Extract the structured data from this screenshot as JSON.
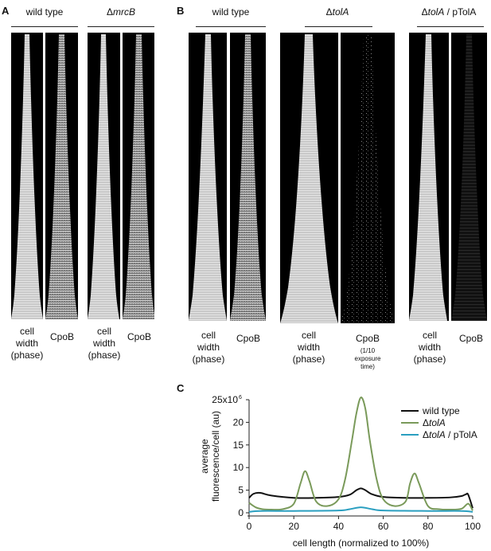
{
  "panel_labels": {
    "a": "A",
    "b": "B",
    "c": "C"
  },
  "groups": {
    "a1": "wild type",
    "a2_prefix": "Δ",
    "a2_gene": "mrcB",
    "b1": "wild type",
    "b2_prefix": "Δ",
    "b2_gene": "tolA",
    "b3_prefix": "Δ",
    "b3_gene": "tolA",
    "b3_suffix": " / pTolA"
  },
  "captions": {
    "cell_width": [
      "cell",
      "width",
      "(phase)"
    ],
    "cpob": "CpoB",
    "exposure": [
      "(1/10",
      "exposure",
      "time)"
    ]
  },
  "colors": {
    "wild_type": "#111111",
    "tolA": "#7a9a5a",
    "tolA_ptolA": "#2a9fc0"
  },
  "chart_data": {
    "type": "line",
    "ylabel_line1": "average",
    "ylabel_line2": "fluorescence/cell (au)",
    "xlabel": "cell length (normalized to 100%)",
    "xlim": [
      0,
      100
    ],
    "ylim": [
      0,
      25000000
    ],
    "xticks": [
      "0",
      "20",
      "40",
      "60",
      "80",
      "100"
    ],
    "yticks": [
      "0",
      "5",
      "10",
      "15",
      "20"
    ],
    "ytop_tick_base": "25x10",
    "ytop_tick_exp": "6",
    "legend_placement": "top-right",
    "series": [
      {
        "name": "wild type",
        "name_parts": [
          "wild type"
        ],
        "color": "#111111",
        "x": [
          0,
          2,
          5,
          10,
          20,
          30,
          40,
          45,
          48,
          50,
          52,
          55,
          60,
          70,
          80,
          90,
          95,
          97,
          98,
          100
        ],
        "y": [
          3300000,
          4200000,
          4400000,
          3800000,
          3300000,
          3300000,
          3500000,
          4000000,
          5000000,
          5400000,
          5000000,
          4100000,
          3500000,
          3300000,
          3300000,
          3400000,
          3700000,
          4100000,
          4000000,
          1000000
        ]
      },
      {
        "name": "ΔtolA",
        "name_parts": [
          "Δ",
          "tolA"
        ],
        "color": "#7a9a5a",
        "x": [
          0,
          3,
          6,
          10,
          15,
          20,
          23,
          25,
          27,
          30,
          35,
          40,
          43,
          46,
          48,
          50,
          52,
          54,
          57,
          60,
          65,
          70,
          72,
          74,
          76,
          80,
          85,
          90,
          95,
          98,
          100
        ],
        "y": [
          2200000,
          1200000,
          800000,
          700000,
          800000,
          2000000,
          6500000,
          9200000,
          7000000,
          2500000,
          1500000,
          3000000,
          7500000,
          16000000,
          22000000,
          25500000,
          23000000,
          16000000,
          7500000,
          3000000,
          1500000,
          2500000,
          6500000,
          8700000,
          6500000,
          1500000,
          800000,
          700000,
          900000,
          2000000,
          500000
        ]
      },
      {
        "name": "ΔtolA / pTolA",
        "name_parts": [
          "Δ",
          "tolA",
          " / pTolA"
        ],
        "color": "#2a9fc0",
        "x": [
          0,
          5,
          20,
          40,
          45,
          50,
          55,
          60,
          80,
          95,
          100
        ],
        "y": [
          200000,
          400000,
          400000,
          500000,
          800000,
          1200000,
          800000,
          500000,
          400000,
          400000,
          200000
        ]
      }
    ]
  }
}
